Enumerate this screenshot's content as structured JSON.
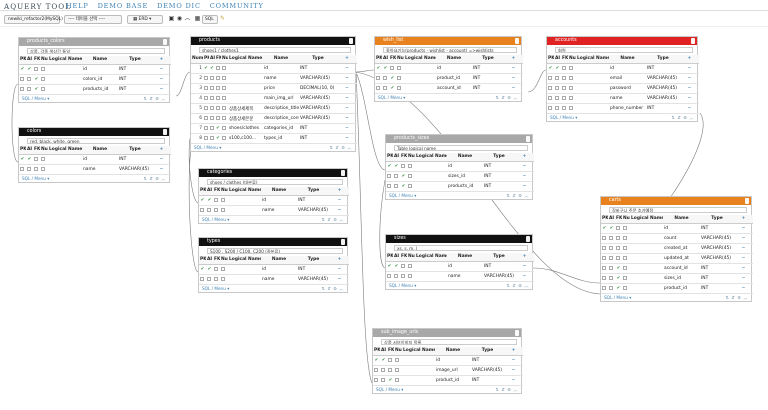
{
  "app": {
    "brand": "AQUERY TOOL",
    "nav": [
      "HELP",
      "DEMO BASE",
      "DEMO DIC",
      "COMMUNITY"
    ]
  },
  "toolbar": {
    "db_select": "newiki_refactor2(MySQL)",
    "table_select": "---- 테이블 선택 ----",
    "view_select": "ERD",
    "sql_label": "SQL"
  },
  "colors": {
    "gray": "#a8a8a8",
    "black": "#111111",
    "orange": "#e8821e",
    "red": "#e02222",
    "link": "#3f83b5",
    "check": "#2d8c3c"
  },
  "labels": {
    "num": "Num",
    "pk": "PK",
    "ai": "AI",
    "fk": "FK",
    "null": "Null",
    "logical": "Logical Name",
    "name": "Name",
    "type": "Type",
    "sql_menu": "SQL / Menu"
  },
  "tables": {
    "products_colors": {
      "title": "products_colors",
      "comment": "상품, 각종 색상간 통일",
      "rows": [
        {
          "pk": true,
          "ai": true,
          "fk": false,
          "logical": "",
          "name": "id",
          "type": "INT"
        },
        {
          "pk": false,
          "ai": false,
          "fk": true,
          "logical": "",
          "name": "colors_id",
          "type": "INT"
        },
        {
          "pk": false,
          "ai": false,
          "fk": true,
          "logical": "",
          "name": "products_id",
          "type": "INT"
        }
      ]
    },
    "colors": {
      "title": "colors",
      "comment": "red, black, white, green",
      "rows": [
        {
          "pk": true,
          "ai": true,
          "fk": false,
          "logical": "",
          "name": "id",
          "type": "INT"
        },
        {
          "pk": false,
          "ai": false,
          "fk": false,
          "logical": "",
          "name": "name",
          "type": "VARCHAR(45)"
        }
      ]
    },
    "products": {
      "title": "products",
      "comment": "shoes1 / clothes1",
      "rows": [
        {
          "num": "1",
          "pk": true,
          "ai": true,
          "fk": false,
          "logical": "",
          "name": "id",
          "type": "INT"
        },
        {
          "num": "2",
          "pk": false,
          "ai": false,
          "fk": false,
          "logical": "",
          "name": "name",
          "type": "VARCHAR(45)"
        },
        {
          "num": "3",
          "pk": false,
          "ai": false,
          "fk": false,
          "logical": "",
          "name": "price",
          "type": "DECIMAL(10, 0)"
        },
        {
          "num": "4",
          "pk": false,
          "ai": false,
          "fk": false,
          "logical": "",
          "name": "main_img_url",
          "type": "VARCHAR(45)"
        },
        {
          "num": "5",
          "pk": false,
          "ai": false,
          "fk": false,
          "logical": "상품상세제목",
          "name": "description_title",
          "type": "VARCHAR(45)"
        },
        {
          "num": "6",
          "pk": false,
          "ai": false,
          "fk": false,
          "logical": "상품상세본문",
          "name": "description_cont",
          "type": "VARCHAR(45)"
        },
        {
          "num": "7",
          "pk": false,
          "ai": false,
          "fk": true,
          "logical": "shoes/clothes",
          "name": "categories_id",
          "type": "INT"
        },
        {
          "num": "8",
          "pk": false,
          "ai": false,
          "fk": true,
          "logical": "s100,c100...",
          "name": "types_id",
          "type": "INT"
        }
      ]
    },
    "categories": {
      "title": "categories",
      "comment": "shoes / clothes (대분류)",
      "rows": [
        {
          "pk": true,
          "ai": true,
          "fk": false,
          "logical": "",
          "name": "id",
          "type": "INT"
        },
        {
          "pk": false,
          "ai": false,
          "fk": false,
          "logical": "",
          "name": "name",
          "type": "VARCHAR(45)"
        }
      ]
    },
    "types": {
      "title": "types",
      "comment": "S100 , S200 / C100, C200 (중분류)",
      "rows": [
        {
          "pk": true,
          "ai": true,
          "fk": false,
          "logical": "",
          "name": "id",
          "type": "INT"
        },
        {
          "pk": false,
          "ai": false,
          "fk": false,
          "logical": "",
          "name": "name",
          "type": "VARCHAR(45)"
        }
      ]
    },
    "wish_list": {
      "title": "wish_list",
      "comment": "좋아요기능(products - wishlist - account) =>wishlists",
      "rows": [
        {
          "pk": true,
          "ai": true,
          "fk": false,
          "logical": "",
          "name": "id",
          "type": "INT"
        },
        {
          "pk": false,
          "ai": false,
          "fk": true,
          "logical": "",
          "name": "product_id",
          "type": "INT"
        },
        {
          "pk": false,
          "ai": false,
          "fk": true,
          "logical": "",
          "name": "account_id",
          "type": "INT"
        }
      ]
    },
    "products_sizes": {
      "title": "products_sizes",
      "comment": "Table logical name",
      "rows": [
        {
          "pk": true,
          "ai": true,
          "fk": false,
          "logical": "",
          "name": "id",
          "type": "INT"
        },
        {
          "pk": false,
          "ai": false,
          "fk": true,
          "logical": "",
          "name": "sizes_id",
          "type": "INT"
        },
        {
          "pk": false,
          "ai": false,
          "fk": true,
          "logical": "",
          "name": "products_id",
          "type": "INT"
        }
      ]
    },
    "sizes": {
      "title": "sizes",
      "comment": "xs, s, m, l",
      "rows": [
        {
          "pk": true,
          "ai": true,
          "fk": false,
          "logical": "",
          "name": "id",
          "type": "INT"
        },
        {
          "pk": false,
          "ai": false,
          "fk": false,
          "logical": "",
          "name": "name",
          "type": "VARCHAR(45)"
        }
      ]
    },
    "sub_image_urls": {
      "title": "sub_image_urls",
      "comment": "상품 서브이미지 목록",
      "rows": [
        {
          "pk": true,
          "ai": true,
          "fk": false,
          "logical": "",
          "name": "id",
          "type": "INT"
        },
        {
          "pk": false,
          "ai": false,
          "fk": false,
          "logical": "",
          "name": "image_url",
          "type": "VARCHAR(45)"
        },
        {
          "pk": false,
          "ai": false,
          "fk": true,
          "logical": "",
          "name": "product_id",
          "type": "INT"
        }
      ]
    },
    "accounts": {
      "title": "accounts",
      "comment": "회원",
      "rows": [
        {
          "pk": true,
          "ai": true,
          "fk": false,
          "logical": "",
          "name": "id",
          "type": "INT"
        },
        {
          "pk": false,
          "ai": false,
          "fk": false,
          "logical": "",
          "name": "email",
          "type": "VARCHAR(45)"
        },
        {
          "pk": false,
          "ai": false,
          "fk": false,
          "logical": "",
          "name": "password",
          "type": "VARCHAR(45)"
        },
        {
          "pk": false,
          "ai": false,
          "fk": false,
          "logical": "",
          "name": "name",
          "type": "VARCHAR(45)"
        },
        {
          "pk": false,
          "ai": false,
          "fk": false,
          "logical": "",
          "name": "phone_number",
          "type": "INT"
        }
      ]
    },
    "carts": {
      "title": "carts",
      "comment": "장바구니 주문 추가예정",
      "rows": [
        {
          "pk": true,
          "ai": true,
          "fk": false,
          "logical": "",
          "name": "id",
          "type": "INT"
        },
        {
          "pk": false,
          "ai": false,
          "fk": false,
          "logical": "",
          "name": "count",
          "type": "VARCHAR(45)"
        },
        {
          "pk": false,
          "ai": false,
          "fk": false,
          "logical": "",
          "name": "created_at",
          "type": "VARCHAR(45)"
        },
        {
          "pk": false,
          "ai": false,
          "fk": false,
          "logical": "",
          "name": "updated_at",
          "type": "VARCHAR(45)"
        },
        {
          "pk": false,
          "ai": false,
          "fk": true,
          "logical": "",
          "name": "account_id",
          "type": "INT"
        },
        {
          "pk": false,
          "ai": false,
          "fk": true,
          "logical": "",
          "name": "sizes_id",
          "type": "INT"
        },
        {
          "pk": false,
          "ai": false,
          "fk": true,
          "logical": "",
          "name": "product_id",
          "type": "INT"
        }
      ]
    }
  }
}
